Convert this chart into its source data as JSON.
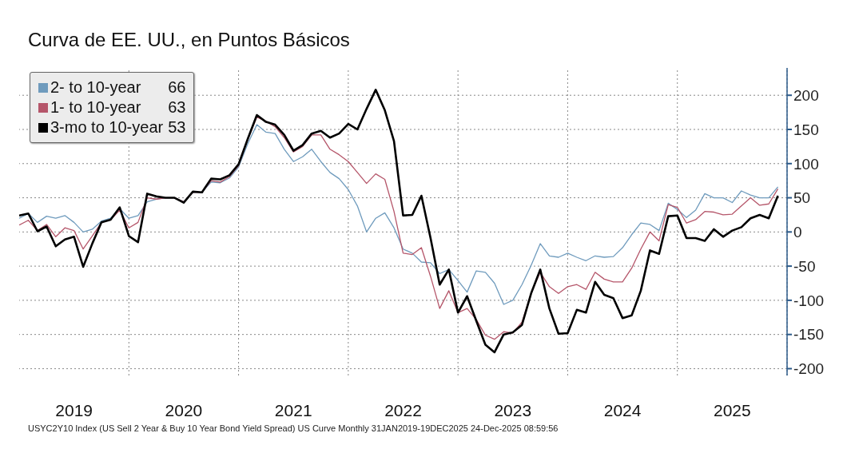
{
  "chart_data": {
    "type": "line",
    "title": "Curva de EE. UU., en Puntos Básicos",
    "annotations": [
      "USYC2Y10 Index (US Sell 2 Year & Buy 10 Year Bond Yield Spread) US Curve Monthly 31JAN2019-19DEC2025 24-Dec-2025 08:59:56"
    ],
    "x": [
      "2019-01",
      "2019-02",
      "2019-03",
      "2019-04",
      "2019-05",
      "2019-06",
      "2019-07",
      "2019-08",
      "2019-09",
      "2019-10",
      "2019-11",
      "2019-12",
      "2020-01",
      "2020-02",
      "2020-03",
      "2020-04",
      "2020-05",
      "2020-06",
      "2020-07",
      "2020-08",
      "2020-09",
      "2020-10",
      "2020-11",
      "2020-12",
      "2021-01",
      "2021-02",
      "2021-03",
      "2021-04",
      "2021-05",
      "2021-06",
      "2021-07",
      "2021-08",
      "2021-09",
      "2021-10",
      "2021-11",
      "2021-12",
      "2022-01",
      "2022-02",
      "2022-03",
      "2022-04",
      "2022-05",
      "2022-06",
      "2022-07",
      "2022-08",
      "2022-09",
      "2022-10",
      "2022-11",
      "2022-12",
      "2023-01",
      "2023-02",
      "2023-03",
      "2023-04",
      "2023-05",
      "2023-06",
      "2023-07",
      "2023-08",
      "2023-09",
      "2023-10",
      "2023-11",
      "2023-12",
      "2024-01",
      "2024-02",
      "2024-03",
      "2024-04",
      "2024-05",
      "2024-06",
      "2024-07",
      "2024-08",
      "2024-09",
      "2024-10",
      "2024-11",
      "2024-12",
      "2025-01",
      "2025-02",
      "2025-03",
      "2025-04",
      "2025-05",
      "2025-06",
      "2025-07",
      "2025-08",
      "2025-09",
      "2025-10",
      "2025-11",
      "2025-12"
    ],
    "series": [
      {
        "name": "2- to 10-year 66",
        "color": "#6f9bbd",
        "values": [
          20,
          27,
          14,
          23,
          20,
          24,
          14,
          0,
          4,
          16,
          20,
          34,
          20,
          24,
          44,
          48,
          50,
          50,
          44,
          58,
          58,
          73,
          72,
          79,
          95,
          129,
          157,
          146,
          144,
          121,
          103,
          110,
          121,
          103,
          87,
          78,
          62,
          38,
          0,
          20,
          28,
          6,
          -25,
          -31,
          -44,
          -45,
          -61,
          -55,
          -71,
          -88,
          -57,
          -59,
          -75,
          -106,
          -100,
          -77,
          -49,
          -17,
          -35,
          -37,
          -31,
          -37,
          -42,
          -35,
          -37,
          -36,
          -23,
          -4,
          13,
          11,
          2,
          42,
          33,
          21,
          32,
          56,
          50,
          50,
          43,
          60,
          54,
          50,
          50,
          66
        ]
      },
      {
        "name": "1- to 10-year 63",
        "color": "#b5566a",
        "values": [
          10,
          17,
          2,
          11,
          -7,
          6,
          2,
          -25,
          -6,
          14,
          18,
          32,
          6,
          14,
          50,
          48,
          50,
          50,
          44,
          58,
          58,
          75,
          73,
          81,
          97,
          135,
          168,
          162,
          154,
          138,
          117,
          125,
          142,
          142,
          121,
          113,
          103,
          87,
          71,
          85,
          77,
          30,
          -31,
          -33,
          -23,
          -65,
          -112,
          -86,
          -118,
          -112,
          -128,
          -151,
          -157,
          -146,
          -148,
          -132,
          -90,
          -59,
          -80,
          -90,
          -80,
          -77,
          -84,
          -59,
          -69,
          -73,
          -73,
          -53,
          -25,
          0,
          -13,
          40,
          36,
          13,
          18,
          30,
          29,
          25,
          26,
          38,
          50,
          39,
          41,
          63
        ]
      },
      {
        "name": "3-mo to 10-year 53",
        "color": "#000000",
        "values": [
          24,
          27,
          1,
          8,
          -21,
          -11,
          -7,
          -51,
          -17,
          14,
          18,
          36,
          -6,
          -15,
          56,
          52,
          50,
          50,
          43,
          59,
          58,
          78,
          77,
          83,
          99,
          136,
          171,
          161,
          157,
          142,
          119,
          127,
          144,
          148,
          138,
          144,
          158,
          150,
          180,
          208,
          178,
          133,
          24,
          25,
          53,
          -9,
          -77,
          -55,
          -118,
          -94,
          -130,
          -165,
          -176,
          -150,
          -147,
          -136,
          -90,
          -55,
          -112,
          -149,
          -148,
          -114,
          -118,
          -73,
          -92,
          -97,
          -126,
          -122,
          -86,
          -27,
          -32,
          23,
          24,
          -9,
          -9,
          -13,
          4,
          -7,
          2,
          7,
          20,
          25,
          20,
          53
        ]
      }
    ],
    "xlim": [
      "2019-01",
      "2026-01"
    ],
    "xticks": [
      {
        "value": "2019-07",
        "label": "2019"
      },
      {
        "value": "2020-01",
        "label": null
      },
      {
        "value": "2020-07",
        "label": "2020"
      },
      {
        "value": "2021-01",
        "label": null
      },
      {
        "value": "2021-07",
        "label": "2021"
      },
      {
        "value": "2022-01",
        "label": null
      },
      {
        "value": "2022-07",
        "label": "2022"
      },
      {
        "value": "2023-01",
        "label": null
      },
      {
        "value": "2023-07",
        "label": "2023"
      },
      {
        "value": "2024-01",
        "label": null
      },
      {
        "value": "2024-07",
        "label": "2024"
      },
      {
        "value": "2025-01",
        "label": null
      },
      {
        "value": "2025-07",
        "label": "2025"
      },
      {
        "value": "2026-01",
        "label": null
      }
    ],
    "ylim": [
      -210,
      240
    ],
    "yticks": [
      -200,
      -150,
      -100,
      -50,
      0,
      50,
      100,
      150,
      200
    ],
    "grid": true,
    "legend": "top left",
    "marker": "none",
    "line_style": "solid"
  }
}
